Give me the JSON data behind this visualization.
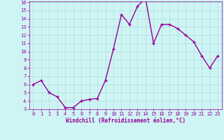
{
  "x": [
    0,
    1,
    2,
    3,
    4,
    5,
    6,
    7,
    8,
    9,
    10,
    11,
    12,
    13,
    14,
    15,
    16,
    17,
    18,
    19,
    20,
    21,
    22,
    23
  ],
  "y": [
    6,
    6.5,
    5,
    4.5,
    3.2,
    3.2,
    4.0,
    4.2,
    4.3,
    6.5,
    10.3,
    14.5,
    13.3,
    15.5,
    16.5,
    11.0,
    13.3,
    13.3,
    12.8,
    12.0,
    11.2,
    9.5,
    8.0,
    9.5
  ],
  "line_color": "#990099",
  "marker": "+",
  "background_color": "#cef4f4",
  "grid_color": "#b0dede",
  "xlabel": "Windchill (Refroidissement éolien,°C)",
  "xlabel_color": "#990099",
  "tick_color": "#990099",
  "ylim": [
    3,
    16
  ],
  "xlim": [
    -0.5,
    23.5
  ],
  "yticks": [
    3,
    4,
    5,
    6,
    7,
    8,
    9,
    10,
    11,
    12,
    13,
    14,
    15,
    16
  ],
  "xticks": [
    0,
    1,
    2,
    3,
    4,
    5,
    6,
    7,
    8,
    9,
    10,
    11,
    12,
    13,
    14,
    15,
    16,
    17,
    18,
    19,
    20,
    21,
    22,
    23
  ],
  "linewidth": 1.0,
  "markersize": 3,
  "markeredgewidth": 1.0,
  "tick_fontsize": 5,
  "xlabel_fontsize": 5.5
}
